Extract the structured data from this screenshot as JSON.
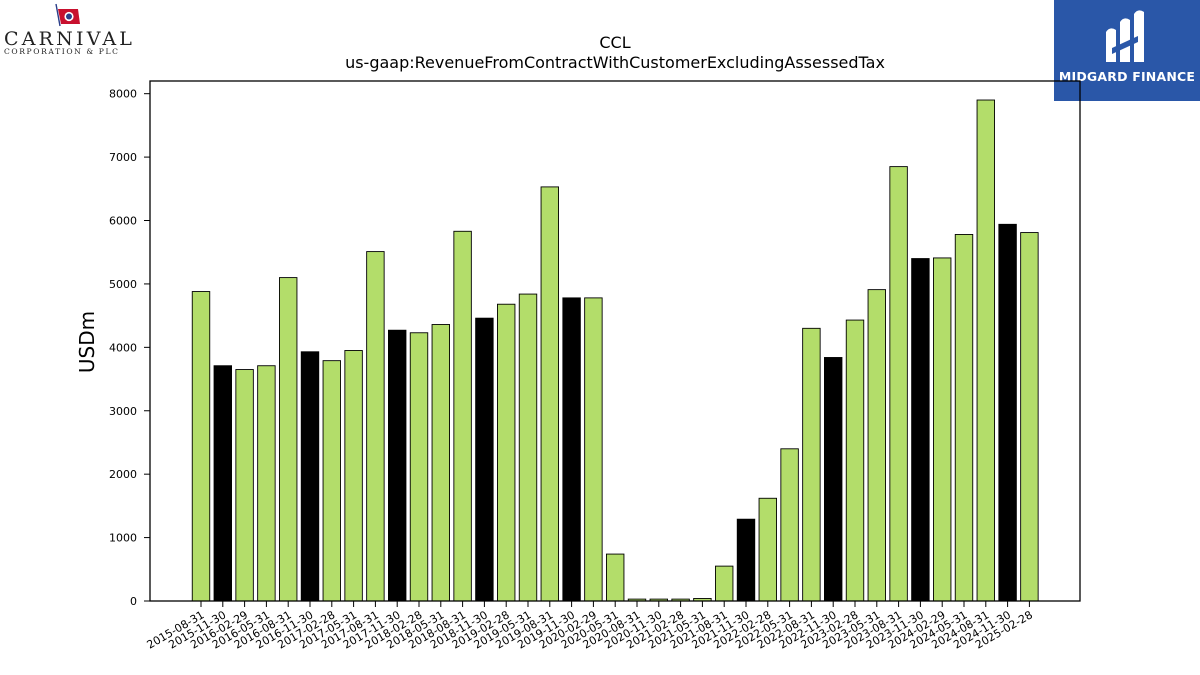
{
  "logos": {
    "left_name": "CARNIVAL",
    "left_sub": "CORPORATION & PLC",
    "right_name": "MIDGARD FINANCE"
  },
  "colors": {
    "normal_bar": "#b3dd6a",
    "highlight_bar": "#000000",
    "brand_blue": "#2a57a8"
  },
  "chart_data": {
    "type": "bar",
    "title": "CCL",
    "subtitle": "us-gaap:RevenueFromContractWithCustomerExcludingAssessedTax",
    "xlabel": "",
    "ylabel": "USDm",
    "ylim": [
      0,
      8200
    ],
    "yticks": [
      0,
      1000,
      2000,
      3000,
      4000,
      5000,
      6000,
      7000,
      8000
    ],
    "grid": false,
    "categories": [
      "2015-08-31",
      "2015-11-30",
      "2016-02-29",
      "2016-05-31",
      "2016-08-31",
      "2016-11-30",
      "2017-02-28",
      "2017-05-31",
      "2017-08-31",
      "2017-11-30",
      "2018-02-28",
      "2018-05-31",
      "2018-08-31",
      "2018-11-30",
      "2019-02-28",
      "2019-05-31",
      "2019-08-31",
      "2019-11-30",
      "2020-02-29",
      "2020-05-31",
      "2020-08-31",
      "2020-11-30",
      "2021-02-28",
      "2021-05-31",
      "2021-08-31",
      "2021-11-30",
      "2022-02-28",
      "2022-05-31",
      "2022-08-31",
      "2022-11-30",
      "2023-02-28",
      "2023-05-31",
      "2023-08-31",
      "2023-11-30",
      "2024-02-29",
      "2024-05-31",
      "2024-08-31",
      "2024-11-30",
      "2025-02-28"
    ],
    "values": [
      4880,
      3710,
      3650,
      3710,
      5100,
      3930,
      3790,
      3950,
      5510,
      4270,
      4230,
      4360,
      5830,
      4460,
      4680,
      4840,
      6530,
      4780,
      4780,
      740,
      30,
      30,
      30,
      40,
      550,
      1290,
      1620,
      2400,
      4300,
      3840,
      4430,
      4910,
      6850,
      5400,
      5410,
      5780,
      7900,
      5940,
      5810
    ],
    "highlight": [
      false,
      true,
      false,
      false,
      false,
      true,
      false,
      false,
      false,
      true,
      false,
      false,
      false,
      true,
      false,
      false,
      false,
      true,
      false,
      false,
      false,
      false,
      false,
      false,
      false,
      true,
      false,
      false,
      false,
      true,
      false,
      false,
      false,
      true,
      false,
      false,
      false,
      true,
      false
    ]
  }
}
